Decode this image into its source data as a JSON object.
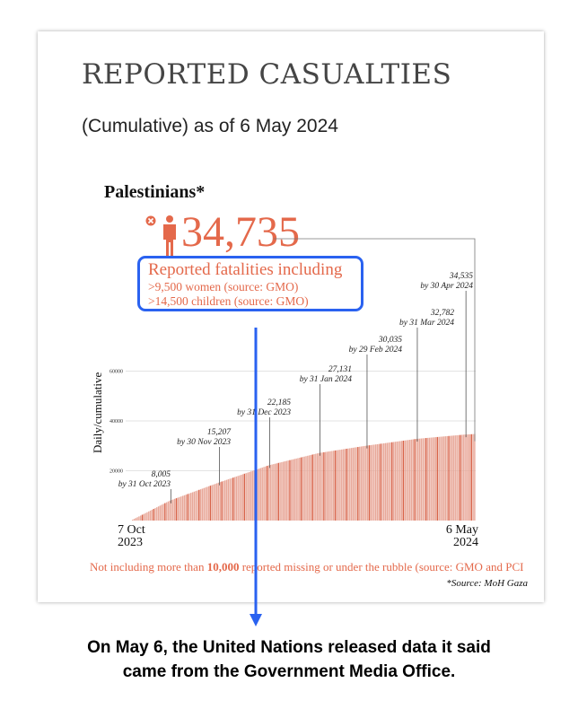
{
  "title": "REPORTED CASUALTIES",
  "subtitle": "(Cumulative) as of 6 May 2024",
  "group_label": "Palestinians*",
  "total": "34,735",
  "icon": "person-fatality-icon",
  "callout": {
    "heading": "Reported fatalities including",
    "line1": ">9,500 women (source: GMO)",
    "line2": ">14,500 children (source: GMO)"
  },
  "note": {
    "before": "Not including more than ",
    "bold": "10,000",
    "after": " reported missing or under the rubble (source: GMO and PCI"
  },
  "source": "*Source: MoH Gaza",
  "caption": {
    "line1": "On May 6, the United Nations released data it said",
    "line2": "came from the Government Media Office."
  },
  "colors": {
    "accent": "#e4694b",
    "bar_light": "#e8a899",
    "bar_dark": "#d8644a",
    "callout_border": "#2a62f0",
    "arrow": "#2a62f0"
  },
  "chart_data": {
    "type": "bar",
    "ylabel": "Daily/cumulative",
    "ylim": [
      0,
      70000
    ],
    "yticks": [
      20000,
      40000,
      60000
    ],
    "ytick_labels": [
      "20000",
      "40000",
      "60000"
    ],
    "x_start_label": [
      "7 Oct",
      "2023"
    ],
    "x_end_label": [
      "6 May",
      "2024"
    ],
    "x_range": [
      "2023-10-07",
      "2024-05-06"
    ],
    "grid": true,
    "points": [
      {
        "date": "2023-10-07",
        "value": 0
      },
      {
        "date": "2023-10-31",
        "value": 8005,
        "value_label": "8,005",
        "date_label": "by 31 Oct 2023"
      },
      {
        "date": "2023-11-30",
        "value": 15207,
        "value_label": "15,207",
        "date_label": "by 30 Nov 2023"
      },
      {
        "date": "2023-12-31",
        "value": 22185,
        "value_label": "22,185",
        "date_label": "by 31 Dec 2023"
      },
      {
        "date": "2024-01-31",
        "value": 27131,
        "value_label": "27,131",
        "date_label": "by 31 Jan 2024"
      },
      {
        "date": "2024-02-29",
        "value": 30035,
        "value_label": "30,035",
        "date_label": "by 29 Feb 2024"
      },
      {
        "date": "2024-03-31",
        "value": 32782,
        "value_label": "32,782",
        "date_label": "by 31 Mar 2024"
      },
      {
        "date": "2024-04-30",
        "value": 34535,
        "value_label": "34,535",
        "date_label": "by 30 Apr 2024"
      },
      {
        "date": "2024-05-06",
        "value": 34735
      }
    ]
  }
}
